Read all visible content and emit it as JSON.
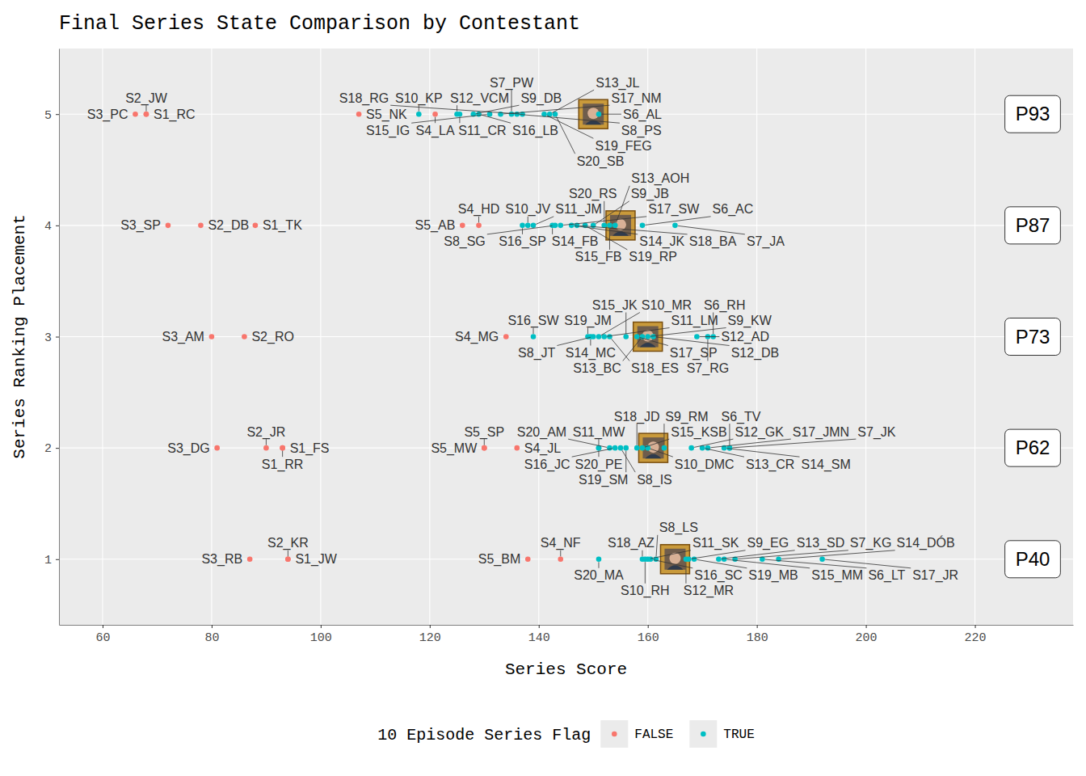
{
  "chart_data": {
    "type": "scatter",
    "title": "Final Series State Comparison by Contestant",
    "x_label": "Series Score",
    "y_label": "Series Ranking Placement",
    "xlim": [
      52,
      238
    ],
    "xticks": [
      60,
      80,
      100,
      120,
      140,
      160,
      180,
      200,
      220
    ],
    "ylim": [
      0.41,
      5.59
    ],
    "yticks": [
      1,
      2,
      3,
      4,
      5
    ],
    "grid": true,
    "legend": "bottom",
    "legend_title": "10 Episode Series Flag",
    "series": [
      {
        "name": "FALSE",
        "color": "#F8766D",
        "labels": [
          "S3_PC",
          "S1_RC",
          "S2_JW",
          "S4_LA",
          "S5_NK",
          "S3_SP",
          "S2_DB",
          "S1_TK",
          "S5_AB",
          "S4_HD",
          "S3_AM",
          "S2_RO",
          "S4_MG",
          "S3_DG",
          "S2_JR",
          "S1_FS",
          "S1_RR",
          "S5_MW",
          "S5_SP",
          "S4_JL",
          "S3_RB",
          "S1_JW",
          "S2_KR",
          "S5_BM",
          "S4_NF"
        ],
        "x": [
          66,
          68,
          68,
          121,
          107,
          72,
          78,
          88,
          126,
          129,
          80,
          86,
          134,
          81,
          90,
          93,
          93,
          130,
          130,
          136,
          87,
          94,
          94,
          138,
          144
        ],
        "values": [
          5,
          5,
          5,
          5,
          5,
          4,
          4,
          4,
          4,
          4,
          3,
          3,
          3,
          2,
          2,
          2,
          2,
          2,
          2,
          2,
          1,
          1,
          1,
          1,
          1
        ]
      },
      {
        "name": "TRUE",
        "color": "#00BFC4",
        "labels": [
          "S10_KP",
          "S12_VCM",
          "S11_CR",
          "S9_DB",
          "S16_LB",
          "S15_IG",
          "S17_NM",
          "S7_PW",
          "S8_PS",
          "S18_RG",
          "S19_FEG",
          "S13_JL",
          "S20_SB",
          "S6_AL",
          "S16_SP",
          "S10_JV",
          "S11_JM",
          "S14_FB",
          "S8_SG",
          "S17_SW",
          "S14_JK",
          "S18_BA",
          "S19_RP",
          "S9_JB",
          "S20_RS",
          "S15_FB",
          "S13_AOH",
          "S6_AC",
          "S7_JA",
          "S16_SW",
          "S19_JM",
          "S14_MC",
          "S8_JT",
          "S10_MR",
          "S11_LM",
          "S18_ES",
          "S15_JK",
          "S17_SP",
          "S13_BC",
          "S9_KW",
          "S12_DB",
          "S12_AD",
          "S7_RG",
          "S6_RH",
          "S11_MW",
          "S20_PE",
          "S20_AM",
          "S16_JC",
          "S8_IS",
          "S19_SM",
          "S18_JD",
          "S15_KSB",
          "S10_DMC",
          "S9_RM",
          "S12_GK",
          "S13_CR",
          "S17_JMN",
          "S14_SM",
          "S6_TV",
          "S7_JK",
          "S20_MA",
          "S18_AZ",
          "S10_RH",
          "S11_SK",
          "S16_SC",
          "S8_LS",
          "S12_MR",
          "S9_EG",
          "S19_MB",
          "S13_SD",
          "S15_MM",
          "S7_KG",
          "S6_LT",
          "S14_DÓB",
          "S17_JR"
        ],
        "x": [
          118,
          125,
          125.5,
          128,
          129,
          131,
          133,
          135,
          136,
          137,
          141,
          142,
          143,
          151,
          137,
          138,
          139,
          142.5,
          143,
          144,
          146,
          147,
          148.5,
          150,
          152,
          153,
          154,
          159,
          165,
          139,
          149,
          149.5,
          150,
          151,
          152,
          153,
          156,
          158,
          159,
          160,
          161,
          169,
          171,
          172,
          151,
          151,
          153,
          154,
          155,
          156,
          158,
          159,
          160,
          163,
          168,
          170,
          171,
          174,
          175,
          175,
          151,
          159,
          159.5,
          160,
          160.5,
          161.5,
          167,
          167.5,
          168.5,
          173,
          174,
          176,
          181,
          184,
          192
        ],
        "values": [
          5,
          5,
          5,
          5,
          5,
          5,
          5,
          5,
          5,
          5,
          5,
          5,
          5,
          5,
          4,
          4,
          4,
          4,
          4,
          4,
          4,
          4,
          4,
          4,
          4,
          4,
          4,
          4,
          4,
          3,
          3,
          3,
          3,
          3,
          3,
          3,
          3,
          3,
          3,
          3,
          3,
          3,
          3,
          3,
          2,
          2,
          2,
          2,
          2,
          2,
          2,
          2,
          2,
          2,
          2,
          2,
          2,
          2,
          2,
          2,
          1,
          1,
          1,
          1,
          1,
          1,
          1,
          1,
          1,
          1,
          1,
          1,
          1,
          1,
          1
        ]
      }
    ],
    "annotations": [
      {
        "text": "P93",
        "x": 150,
        "y": 5
      },
      {
        "text": "P87",
        "x": 155,
        "y": 4
      },
      {
        "text": "P73",
        "x": 160,
        "y": 3
      },
      {
        "text": "P62",
        "x": 161,
        "y": 2
      },
      {
        "text": "P40",
        "x": 165,
        "y": 1
      }
    ]
  }
}
